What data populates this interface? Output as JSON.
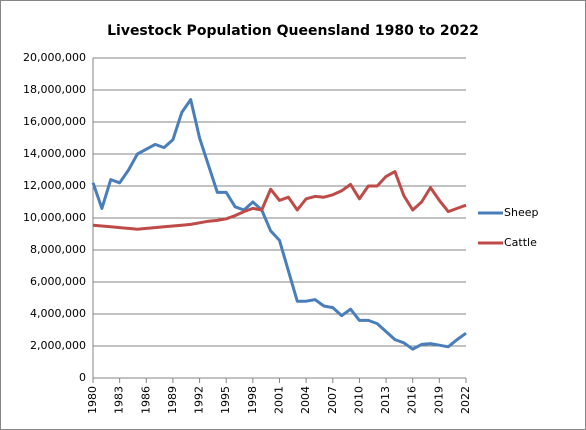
{
  "chart_data": {
    "type": "line",
    "title": "Livestock Population Queensland 1980 to 2022",
    "x": [
      1980,
      1981,
      1982,
      1983,
      1984,
      1985,
      1986,
      1987,
      1988,
      1989,
      1990,
      1991,
      1992,
      1993,
      1994,
      1995,
      1996,
      1997,
      1998,
      1999,
      2000,
      2001,
      2002,
      2003,
      2004,
      2005,
      2006,
      2007,
      2008,
      2009,
      2010,
      2011,
      2012,
      2013,
      2014,
      2015,
      2016,
      2017,
      2018,
      2019,
      2020,
      2021,
      2022
    ],
    "series": [
      {
        "name": "Sheep",
        "color": "#4a7ebb",
        "values": [
          12200000,
          10600000,
          12400000,
          12200000,
          13000000,
          14000000,
          14300000,
          14600000,
          14400000,
          14900000,
          16600000,
          17400000,
          15000000,
          13300000,
          11600000,
          11600000,
          10700000,
          10500000,
          11000000,
          10500000,
          9200000,
          8600000,
          6700000,
          4800000,
          4800000,
          4900000,
          4500000,
          4400000,
          3900000,
          4300000,
          3600000,
          3600000,
          3400000,
          2900000,
          2400000,
          2200000,
          1800000,
          2100000,
          2150000,
          2050000,
          1950000,
          2400000,
          2800000
        ]
      },
      {
        "name": "Cattle",
        "color": "#be4b48",
        "values": [
          9550000,
          9500000,
          9450000,
          9400000,
          9350000,
          9300000,
          9350000,
          9400000,
          9450000,
          9500000,
          9550000,
          9600000,
          9700000,
          9800000,
          9850000,
          9950000,
          10150000,
          10400000,
          10600000,
          10500000,
          11800000,
          11100000,
          11300000,
          10500000,
          11200000,
          11350000,
          11300000,
          11450000,
          11700000,
          12100000,
          11200000,
          12000000,
          12000000,
          12600000,
          12900000,
          11400000,
          10500000,
          11000000,
          11900000,
          11100000,
          10400000,
          10600000,
          10800000
        ]
      }
    ],
    "xlim": [
      1980,
      2022
    ],
    "xticks": [
      1980,
      1983,
      1986,
      1989,
      1992,
      1995,
      1998,
      2001,
      2004,
      2007,
      2010,
      2013,
      2016,
      2019,
      2022
    ],
    "ylim": [
      0,
      20000000
    ],
    "yticks": [
      0,
      {
        "value": 2000000,
        "label": "2,000,000"
      },
      {
        "value": 4000000,
        "label": "4,000,000"
      },
      {
        "value": 6000000,
        "label": "6,000,000"
      },
      {
        "value": 8000000,
        "label": "8,000,000"
      },
      {
        "value": 10000000,
        "label": "10,000,000"
      },
      {
        "value": 12000000,
        "label": "12,000,000"
      },
      {
        "value": 14000000,
        "label": "14,000,000"
      },
      {
        "value": 16000000,
        "label": "16,000,000"
      },
      {
        "value": 18000000,
        "label": "18,000,000"
      },
      {
        "value": 20000000,
        "label": "20,000,000"
      }
    ],
    "grid": true,
    "legend": "right"
  }
}
